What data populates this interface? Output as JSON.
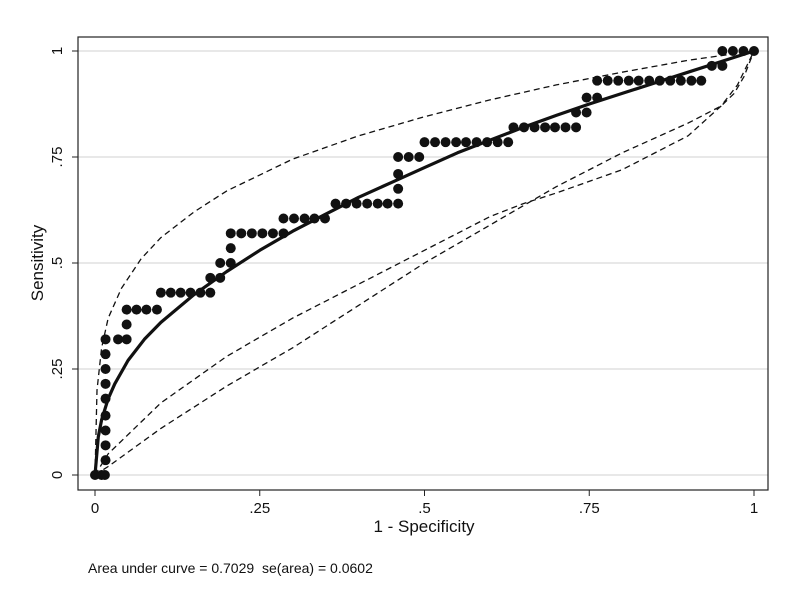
{
  "chart_data": {
    "type": "scatter",
    "xlabel": "1 - Specificity",
    "ylabel": "Sensitivity",
    "xlim": [
      0,
      1
    ],
    "ylim": [
      0,
      1
    ],
    "xticks": [
      0,
      0.25,
      0.5,
      0.75,
      1
    ],
    "yticks": [
      0,
      0.25,
      0.5,
      0.75,
      1
    ],
    "xtick_labels": [
      "0",
      ".25",
      ".5",
      ".75",
      "1"
    ],
    "ytick_labels": [
      "0",
      ".25",
      ".5",
      ".75",
      "1"
    ],
    "grid": "horizontal",
    "legend": "none",
    "colors": {
      "marks": "#111111",
      "grid": "#d0d0d0",
      "frame": "#222222"
    },
    "series": [
      {
        "style": "points",
        "points": [
          [
            0.0,
            0.0
          ],
          [
            0.01,
            0.0
          ],
          [
            0.015,
            0.0
          ],
          [
            0.016,
            0.035
          ],
          [
            0.016,
            0.07
          ],
          [
            0.016,
            0.105
          ],
          [
            0.016,
            0.14
          ],
          [
            0.016,
            0.18
          ],
          [
            0.016,
            0.215
          ],
          [
            0.016,
            0.25
          ],
          [
            0.016,
            0.285
          ],
          [
            0.016,
            0.32
          ],
          [
            0.035,
            0.32
          ],
          [
            0.048,
            0.32
          ],
          [
            0.048,
            0.355
          ],
          [
            0.048,
            0.39
          ],
          [
            0.063,
            0.39
          ],
          [
            0.078,
            0.39
          ],
          [
            0.094,
            0.39
          ],
          [
            0.1,
            0.43
          ],
          [
            0.115,
            0.43
          ],
          [
            0.13,
            0.43
          ],
          [
            0.145,
            0.43
          ],
          [
            0.16,
            0.43
          ],
          [
            0.175,
            0.43
          ],
          [
            0.175,
            0.465
          ],
          [
            0.19,
            0.465
          ],
          [
            0.19,
            0.5
          ],
          [
            0.206,
            0.5
          ],
          [
            0.206,
            0.535
          ],
          [
            0.206,
            0.57
          ],
          [
            0.222,
            0.57
          ],
          [
            0.238,
            0.57
          ],
          [
            0.254,
            0.57
          ],
          [
            0.27,
            0.57
          ],
          [
            0.286,
            0.57
          ],
          [
            0.286,
            0.605
          ],
          [
            0.302,
            0.605
          ],
          [
            0.318,
            0.605
          ],
          [
            0.333,
            0.605
          ],
          [
            0.349,
            0.605
          ],
          [
            0.365,
            0.64
          ],
          [
            0.381,
            0.64
          ],
          [
            0.397,
            0.64
          ],
          [
            0.413,
            0.64
          ],
          [
            0.429,
            0.64
          ],
          [
            0.444,
            0.64
          ],
          [
            0.46,
            0.64
          ],
          [
            0.46,
            0.675
          ],
          [
            0.46,
            0.71
          ],
          [
            0.46,
            0.75
          ],
          [
            0.476,
            0.75
          ],
          [
            0.492,
            0.75
          ],
          [
            0.5,
            0.785
          ],
          [
            0.516,
            0.785
          ],
          [
            0.532,
            0.785
          ],
          [
            0.548,
            0.785
          ],
          [
            0.563,
            0.785
          ],
          [
            0.579,
            0.785
          ],
          [
            0.595,
            0.785
          ],
          [
            0.611,
            0.785
          ],
          [
            0.627,
            0.785
          ],
          [
            0.635,
            0.82
          ],
          [
            0.651,
            0.82
          ],
          [
            0.667,
            0.82
          ],
          [
            0.683,
            0.82
          ],
          [
            0.698,
            0.82
          ],
          [
            0.714,
            0.82
          ],
          [
            0.73,
            0.82
          ],
          [
            0.73,
            0.855
          ],
          [
            0.746,
            0.855
          ],
          [
            0.746,
            0.89
          ],
          [
            0.762,
            0.89
          ],
          [
            0.762,
            0.93
          ],
          [
            0.778,
            0.93
          ],
          [
            0.794,
            0.93
          ],
          [
            0.81,
            0.93
          ],
          [
            0.825,
            0.93
          ],
          [
            0.841,
            0.93
          ],
          [
            0.857,
            0.93
          ],
          [
            0.873,
            0.93
          ],
          [
            0.889,
            0.93
          ],
          [
            0.905,
            0.93
          ],
          [
            0.92,
            0.93
          ],
          [
            0.936,
            0.965
          ],
          [
            0.952,
            0.965
          ],
          [
            0.952,
            1.0
          ],
          [
            0.968,
            1.0
          ],
          [
            0.984,
            1.0
          ],
          [
            1.0,
            1.0
          ]
        ]
      },
      {
        "style": "solid",
        "points": [
          [
            0.0,
            0.0
          ],
          [
            0.005,
            0.09
          ],
          [
            0.01,
            0.13
          ],
          [
            0.02,
            0.18
          ],
          [
            0.03,
            0.215
          ],
          [
            0.05,
            0.27
          ],
          [
            0.075,
            0.32
          ],
          [
            0.1,
            0.36
          ],
          [
            0.15,
            0.425
          ],
          [
            0.2,
            0.48
          ],
          [
            0.25,
            0.53
          ],
          [
            0.3,
            0.575
          ],
          [
            0.35,
            0.615
          ],
          [
            0.4,
            0.655
          ],
          [
            0.45,
            0.69
          ],
          [
            0.5,
            0.725
          ],
          [
            0.55,
            0.76
          ],
          [
            0.6,
            0.79
          ],
          [
            0.65,
            0.82
          ],
          [
            0.7,
            0.848
          ],
          [
            0.75,
            0.875
          ],
          [
            0.8,
            0.9
          ],
          [
            0.85,
            0.925
          ],
          [
            0.9,
            0.95
          ],
          [
            0.95,
            0.975
          ],
          [
            1.0,
            1.0
          ]
        ]
      },
      {
        "style": "dashed",
        "points": [
          [
            0.0,
            0.0
          ],
          [
            0.003,
            0.2
          ],
          [
            0.01,
            0.3
          ],
          [
            0.02,
            0.37
          ],
          [
            0.04,
            0.44
          ],
          [
            0.07,
            0.51
          ],
          [
            0.1,
            0.56
          ],
          [
            0.15,
            0.62
          ],
          [
            0.2,
            0.67
          ],
          [
            0.3,
            0.745
          ],
          [
            0.4,
            0.8
          ],
          [
            0.5,
            0.845
          ],
          [
            0.6,
            0.885
          ],
          [
            0.7,
            0.92
          ],
          [
            0.8,
            0.95
          ],
          [
            0.9,
            0.978
          ],
          [
            1.0,
            1.0
          ]
        ]
      },
      {
        "style": "dashed",
        "points": [
          [
            0.0,
            0.0
          ],
          [
            0.02,
            0.02
          ],
          [
            0.1,
            0.11
          ],
          [
            0.2,
            0.21
          ],
          [
            0.3,
            0.3
          ],
          [
            0.4,
            0.4
          ],
          [
            0.5,
            0.5
          ],
          [
            0.6,
            0.59
          ],
          [
            0.7,
            0.68
          ],
          [
            0.8,
            0.76
          ],
          [
            0.9,
            0.83
          ],
          [
            0.95,
            0.87
          ],
          [
            0.97,
            0.9
          ],
          [
            0.985,
            0.94
          ],
          [
            1.0,
            1.0
          ]
        ]
      },
      {
        "style": "dashed",
        "points": [
          [
            0.0,
            0.0
          ],
          [
            0.02,
            0.05
          ],
          [
            0.1,
            0.17
          ],
          [
            0.2,
            0.28
          ],
          [
            0.3,
            0.37
          ],
          [
            0.4,
            0.45
          ],
          [
            0.5,
            0.53
          ],
          [
            0.6,
            0.61
          ],
          [
            0.65,
            0.64
          ],
          [
            0.7,
            0.665
          ],
          [
            0.8,
            0.72
          ],
          [
            0.9,
            0.8
          ],
          [
            0.95,
            0.87
          ],
          [
            0.975,
            0.92
          ],
          [
            1.0,
            1.0
          ]
        ]
      }
    ]
  },
  "caption": {
    "text": "Area under curve = 0.7029  se(area) = 0.0602"
  }
}
